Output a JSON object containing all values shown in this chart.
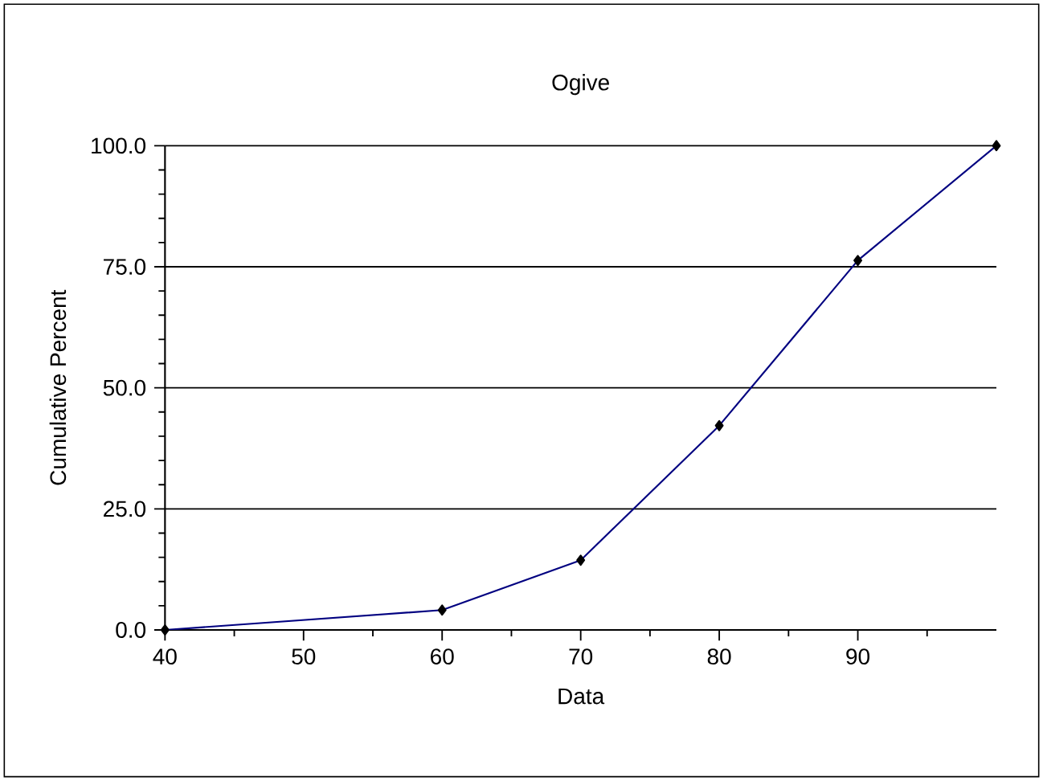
{
  "chart_data": {
    "type": "line",
    "title": "Ogive",
    "xlabel": "Data",
    "ylabel": "Cumulative Percent",
    "x": [
      40,
      60,
      70,
      80,
      90,
      100
    ],
    "series": [
      {
        "color": "#000080",
        "values": [
          0,
          4.1,
          14.4,
          42.2,
          76.3,
          100
        ]
      }
    ],
    "xlim": [
      40,
      100
    ],
    "xticks": [
      40,
      {
        "value": 45,
        "label": null
      },
      50,
      {
        "value": 55,
        "label": null
      },
      60,
      {
        "value": 65,
        "label": null
      },
      70,
      {
        "value": 75,
        "label": null
      },
      80,
      {
        "value": 85,
        "label": null
      },
      90,
      {
        "value": 95,
        "label": null
      }
    ],
    "ylim": [
      0,
      100
    ],
    "yticks": [
      {
        "value": 0,
        "label": "0.0"
      },
      {
        "value": 5,
        "label": null
      },
      {
        "value": 10,
        "label": null
      },
      {
        "value": 15,
        "label": null
      },
      {
        "value": 20,
        "label": null
      },
      {
        "value": 25,
        "label": "25.0"
      },
      {
        "value": 30,
        "label": null
      },
      {
        "value": 35,
        "label": null
      },
      {
        "value": 40,
        "label": null
      },
      {
        "value": 45,
        "label": null
      },
      {
        "value": 50,
        "label": "50.0"
      },
      {
        "value": 55,
        "label": null
      },
      {
        "value": 60,
        "label": null
      },
      {
        "value": 65,
        "label": null
      },
      {
        "value": 70,
        "label": null
      },
      {
        "value": 75,
        "label": "75.0"
      },
      {
        "value": 80,
        "label": null
      },
      {
        "value": 85,
        "label": null
      },
      {
        "value": 90,
        "label": null
      },
      {
        "value": 95,
        "label": null
      },
      {
        "value": 100,
        "label": "100.0"
      }
    ],
    "grid": "y",
    "marker": "diamond",
    "line_style": "solid"
  }
}
